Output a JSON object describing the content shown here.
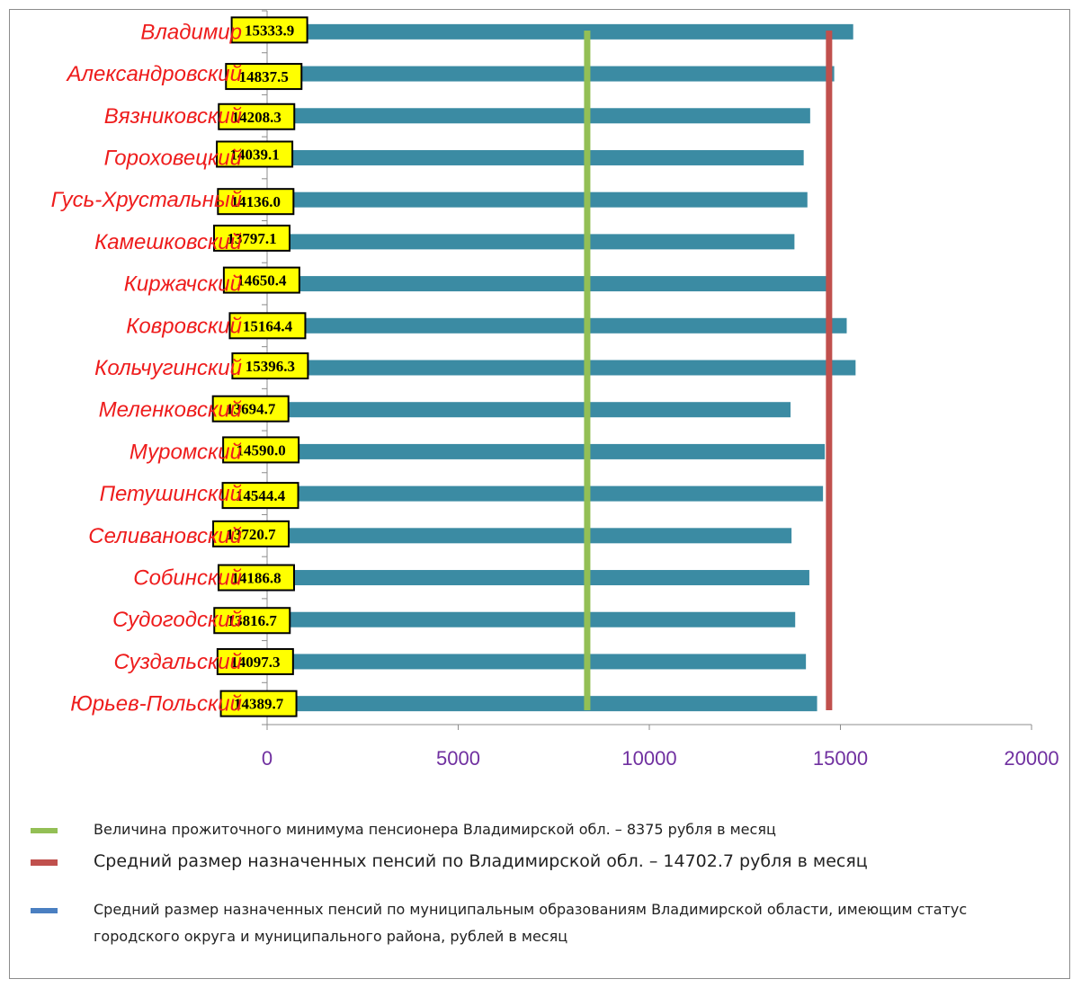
{
  "colors": {
    "bar": "#3b8ba3",
    "subsistence_line": "#93bf55",
    "average_line": "#c0504d",
    "muni_swatch": "#4a7fc1",
    "category_text": "#ee1c1c",
    "tick_text": "#7030a0",
    "label_fill": "#ffff00"
  },
  "chart_data": {
    "type": "bar",
    "orientation": "horizontal",
    "categories": [
      "Владимир",
      "Александровский",
      "Вязниковский",
      "Гороховецкий",
      "Гусь-Хрустальный",
      "Камешковский",
      "Киржачский",
      "Ковровский",
      "Кольчугинский",
      "Меленковский",
      "Муромский",
      "Петушинский",
      "Селивановский",
      "Собинский",
      "Судогодский",
      "Суздальский",
      "Юрьев-Польский"
    ],
    "values": [
      15333.9,
      14837.5,
      14208.3,
      14039.1,
      14136.0,
      13797.1,
      14650.4,
      15164.4,
      15396.3,
      13694.7,
      14590.0,
      14544.4,
      13720.7,
      14186.8,
      13816.7,
      14097.3,
      14389.7
    ],
    "data_labels": [
      "15333.9",
      "14837.5",
      "14208.3",
      "14039.1",
      "14136.0",
      "13797.1",
      "14650.4",
      "15164.4",
      "15396.3",
      "13694.7",
      "14590.0",
      "14544.4",
      "13720.7",
      "14186.8",
      "13816.7",
      "14097.3",
      "14389.7"
    ],
    "xlim": [
      0,
      20000
    ],
    "xticks": [
      "0",
      "5000",
      "10000",
      "15000",
      "20000"
    ],
    "reference_lines": [
      {
        "value": 8375,
        "color": "#93bf55"
      },
      {
        "value": 14702.7,
        "color": "#c0504d"
      }
    ],
    "legend_position": "bottom",
    "legend": [
      {
        "color": "#93bf55",
        "text": "Величина прожиточного минимума пенсионера Владимирской обл. – 8375 рубля в месяц"
      },
      {
        "color": "#c0504d",
        "text": "Средний размер назначенных пенсий по Владимирской обл. – 14702.7 рубля в месяц"
      },
      {
        "color": "#4a7fc1",
        "text": "Средний размер назначенных пенсий по муниципальным образованиям Владимирской области, имеющим статус городского округа и муниципального района, рублей в месяц"
      }
    ]
  }
}
